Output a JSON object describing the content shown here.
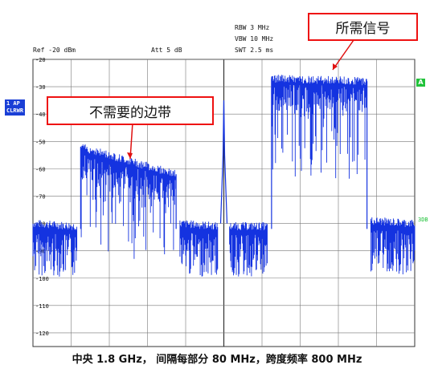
{
  "header": {
    "ref": "Ref -20 dBm",
    "att": "Att  5 dB",
    "rbw": "RBW 3 MHz",
    "vbw": "VBW 10 MHz",
    "swt": "SWT 2.5 ms"
  },
  "side": {
    "trace_line1": "1 AP",
    "trace_line2": "CLRWR",
    "marker_a": "A",
    "trace_3db": "3DB"
  },
  "annotations": {
    "wanted": "所需信号",
    "unwanted": "不需要的边带"
  },
  "caption": "中央 1.8 GHz， 间隔每部分 80 MHz，跨度频率 800 MHz",
  "colors": {
    "trace": "#1433e0",
    "annotation_border": "#e01010",
    "grid": "#555555"
  },
  "chart_data": {
    "type": "line",
    "ylim": [
      -125,
      -20
    ],
    "y_ticks": [
      "-20",
      "-30",
      "-40",
      "-50",
      "-60",
      "-70",
      "-80",
      "-90",
      "-100",
      "-110",
      "-120"
    ],
    "x_divisions": 10,
    "grid": true,
    "segments": [
      {
        "x": [
          0.0,
          1.15
        ],
        "y": [
          -80,
          -81
        ]
      },
      {
        "x": [
          1.25,
          3.75
        ],
        "y": [
          -52,
          -62
        ]
      },
      {
        "x": [
          3.85,
          4.85
        ],
        "y": [
          -80,
          -81
        ]
      },
      {
        "x": [
          5.0,
          5.0
        ],
        "y": [
          -35,
          -35
        ]
      },
      {
        "x": [
          5.15,
          6.15
        ],
        "y": [
          -81,
          -81
        ]
      },
      {
        "x": [
          6.25,
          8.75
        ],
        "y": [
          -27,
          -28
        ]
      },
      {
        "x": [
          8.85,
          10.0
        ],
        "y": [
          -79,
          -80
        ]
      }
    ]
  }
}
